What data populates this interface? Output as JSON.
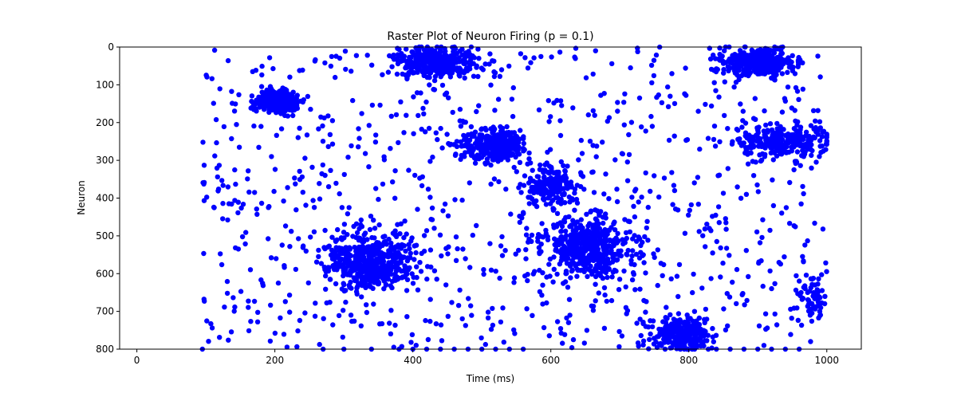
{
  "chart_data": {
    "type": "scatter",
    "title": "Raster Plot of Neuron Firing (p = 0.1)",
    "xlabel": "Time (ms)",
    "ylabel": "Neuron",
    "xlim": [
      -25,
      1050
    ],
    "ylim": [
      800,
      0
    ],
    "y_inverted": true,
    "xticks": [
      0,
      200,
      400,
      600,
      800,
      1000
    ],
    "yticks": [
      0,
      100,
      200,
      300,
      400,
      500,
      600,
      700,
      800
    ],
    "grid": false,
    "legend": "none",
    "marker_color": "#0000ff",
    "clusters": [
      {
        "t_center": 205,
        "t_spread": 28,
        "n_center": 143,
        "n_spread": 30,
        "count": 330
      },
      {
        "t_center": 435,
        "t_spread": 50,
        "n_center": 40,
        "n_spread": 35,
        "count": 320
      },
      {
        "t_center": 900,
        "t_spread": 48,
        "n_center": 40,
        "n_spread": 35,
        "count": 320
      },
      {
        "t_center": 520,
        "t_spread": 45,
        "n_center": 262,
        "n_spread": 40,
        "count": 320
      },
      {
        "t_center": 600,
        "t_spread": 35,
        "n_center": 370,
        "n_spread": 45,
        "count": 200
      },
      {
        "t_center": 935,
        "t_spread": 60,
        "n_center": 250,
        "n_spread": 40,
        "count": 260
      },
      {
        "t_center": 340,
        "t_spread": 60,
        "n_center": 570,
        "n_spread": 70,
        "count": 520
      },
      {
        "t_center": 655,
        "t_spread": 60,
        "n_center": 530,
        "n_spread": 70,
        "count": 480
      },
      {
        "t_center": 790,
        "t_spread": 38,
        "n_center": 760,
        "n_spread": 35,
        "count": 300
      },
      {
        "t_center": 980,
        "t_spread": 20,
        "n_center": 660,
        "n_spread": 50,
        "count": 60
      }
    ],
    "background_spikes": 900,
    "edge_spikes_y800": [
      95,
      270,
      300,
      340,
      380,
      400,
      420,
      440,
      460,
      480,
      500,
      520,
      540,
      560,
      840,
      860,
      880,
      900,
      920,
      940,
      960
    ]
  }
}
